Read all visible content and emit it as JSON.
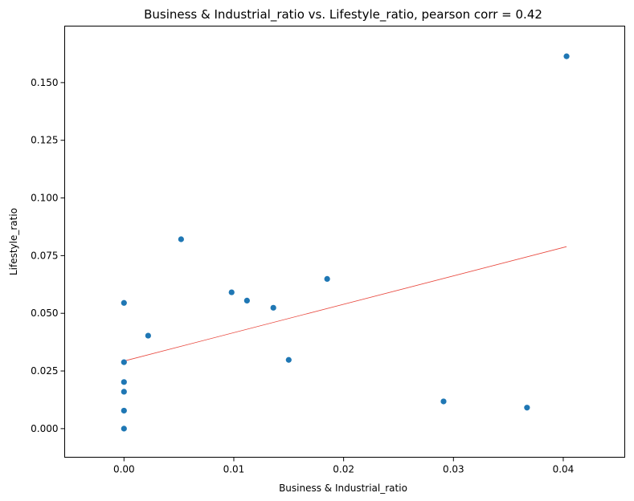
{
  "chart_data": {
    "type": "scatter",
    "title": "Business & Industrial_ratio vs. Lifestyle_ratio, pearson corr = 0.42",
    "xlabel": "Business & Industrial_ratio",
    "ylabel": "Lifestyle_ratio",
    "xlim": [
      -0.0054,
      0.0456
    ],
    "ylim": [
      -0.0124,
      0.1745
    ],
    "xticks": [
      0.0,
      0.01,
      0.02,
      0.03,
      0.04
    ],
    "xtick_labels": [
      "0.00",
      "0.01",
      "0.02",
      "0.03",
      "0.04"
    ],
    "yticks": [
      0.0,
      0.025,
      0.05,
      0.075,
      0.1,
      0.125,
      0.15
    ],
    "ytick_labels": [
      "0.000",
      "0.025",
      "0.050",
      "0.075",
      "0.100",
      "0.125",
      "0.150"
    ],
    "grid": false,
    "colors": {
      "points": "#1f77b4",
      "trendline": "#e8463c"
    },
    "points": [
      {
        "x": 0.0,
        "y": 0.0
      },
      {
        "x": 0.0,
        "y": 0.0078
      },
      {
        "x": 0.0,
        "y": 0.016
      },
      {
        "x": 0.0,
        "y": 0.0202
      },
      {
        "x": 0.0,
        "y": 0.0288
      },
      {
        "x": 0.0,
        "y": 0.0545
      },
      {
        "x": 0.0022,
        "y": 0.0403
      },
      {
        "x": 0.0052,
        "y": 0.0821
      },
      {
        "x": 0.0098,
        "y": 0.0591
      },
      {
        "x": 0.0112,
        "y": 0.0555
      },
      {
        "x": 0.0136,
        "y": 0.0524
      },
      {
        "x": 0.015,
        "y": 0.0298
      },
      {
        "x": 0.0185,
        "y": 0.0649
      },
      {
        "x": 0.0291,
        "y": 0.0118
      },
      {
        "x": 0.0367,
        "y": 0.0091
      },
      {
        "x": 0.0403,
        "y": 0.1614
      }
    ],
    "trendline": {
      "x": [
        0.0,
        0.0403
      ],
      "y": [
        0.0293,
        0.0789
      ]
    }
  }
}
